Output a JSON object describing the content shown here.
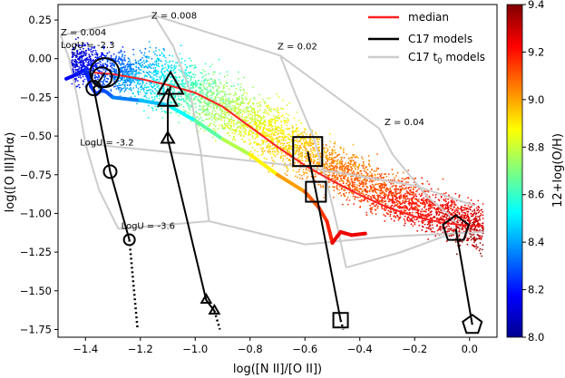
{
  "chart_data": {
    "type": "scatter",
    "xlabel": "log([N II]/[O II])",
    "ylabel": "log([O III]/Hα)",
    "xlim": [
      -1.5,
      0.1
    ],
    "ylim": [
      -1.8,
      0.35
    ],
    "xticks": [
      -1.4,
      -1.2,
      -1.0,
      -0.8,
      -0.6,
      -0.4,
      -0.2,
      0.0
    ],
    "xtick_labels": [
      "−1.4",
      "−1.2",
      "−1.0",
      "−0.8",
      "−0.6",
      "−0.4",
      "−0.2",
      "0.0"
    ],
    "yticks": [
      0.25,
      0.0,
      -0.25,
      -0.5,
      -0.75,
      -1.0,
      -1.25,
      -1.5,
      -1.75
    ],
    "ytick_labels": [
      "0.25",
      "0.00",
      "−0.25",
      "−0.50",
      "−0.75",
      "−1.00",
      "−1.25",
      "−1.50",
      "−1.75"
    ],
    "legend": {
      "position": "top-right",
      "entries": [
        {
          "label": "median",
          "color": "#ff2020"
        },
        {
          "label": "C17 models",
          "color": "#000000"
        },
        {
          "label": "C17 t",
          "sub": "0",
          "label_after": " models",
          "color": "#cccccc"
        }
      ]
    },
    "colorbar": {
      "label": "12+log(O/H)",
      "range": [
        8.0,
        9.4
      ],
      "ticks": [
        8.0,
        8.2,
        8.4,
        8.6,
        8.8,
        9.0,
        9.2,
        9.4
      ],
      "tick_labels": [
        "8.0",
        "8.2",
        "8.4",
        "8.6",
        "8.8",
        "9.0",
        "9.2",
        "9.4"
      ],
      "colormap": "jet"
    },
    "annotations": [
      {
        "text": "Z = 0.004",
        "x": -1.49,
        "y": 0.15
      },
      {
        "text": "LogU = -2.3",
        "x": -1.49,
        "y": 0.07
      },
      {
        "text": "Z = 0.008",
        "x": -1.16,
        "y": 0.26
      },
      {
        "text": "Z = 0.02",
        "x": -0.7,
        "y": 0.06
      },
      {
        "text": "Z = 0.04",
        "x": -0.31,
        "y": -0.43
      },
      {
        "text": "LogU = -3.2",
        "x": -1.42,
        "y": -0.56
      },
      {
        "text": "LogU = -3.6",
        "x": -1.27,
        "y": -1.1
      }
    ],
    "median_curve": {
      "name": "median",
      "color": "#ff2020",
      "x": [
        -1.37,
        -1.3,
        -1.2,
        -1.1,
        -1.0,
        -0.9,
        -0.8,
        -0.7,
        -0.6,
        -0.5,
        -0.4,
        -0.3,
        -0.2,
        -0.1,
        0.0,
        0.05
      ],
      "y": [
        -0.09,
        -0.1,
        -0.13,
        -0.17,
        -0.22,
        -0.31,
        -0.44,
        -0.57,
        -0.69,
        -0.79,
        -0.88,
        -0.96,
        -1.02,
        -1.06,
        -1.08,
        -1.08
      ]
    },
    "low_z_track": {
      "description": "coloured track at lower edge of the galaxy cloud",
      "x": [
        -1.47,
        -1.43,
        -1.4,
        -1.38,
        -1.36,
        -1.34,
        -1.32,
        -1.3,
        -1.2,
        -1.1,
        -1.0,
        -0.9,
        -0.8,
        -0.7,
        -0.6,
        -0.55,
        -0.52,
        -0.5,
        -0.47,
        -0.43,
        -0.38
      ],
      "y": [
        -0.13,
        -0.1,
        -0.07,
        -0.18,
        -0.23,
        -0.2,
        -0.22,
        -0.25,
        -0.27,
        -0.3,
        -0.4,
        -0.52,
        -0.62,
        -0.75,
        -0.86,
        -0.96,
        -1.05,
        -1.19,
        -1.12,
        -1.14,
        -1.13
      ]
    },
    "scatter_cloud": {
      "description": "dense cloud of individual galaxies coloured by 12+log(O/H)",
      "spine_x": [
        -1.45,
        -1.3,
        -1.1,
        -0.9,
        -0.7,
        -0.5,
        -0.3,
        -0.1,
        0.05
      ],
      "spine_y": [
        -0.02,
        -0.08,
        -0.15,
        -0.3,
        -0.5,
        -0.7,
        -0.88,
        -1.0,
        -1.1
      ],
      "oh_at_spine": [
        8.1,
        8.3,
        8.55,
        8.75,
        8.9,
        9.05,
        9.15,
        9.25,
        9.32
      ]
    },
    "c17_models": [
      {
        "marker": "circle",
        "line": "solid",
        "points": [
          {
            "x": -1.33,
            "y": -0.09,
            "size": 16
          },
          {
            "x": -1.34,
            "y": -0.12,
            "size": 11
          },
          {
            "x": -1.37,
            "y": -0.19,
            "size": 8
          },
          {
            "x": -1.31,
            "y": -0.73,
            "size": 7
          },
          {
            "x": -1.24,
            "y": -1.17,
            "size": 6
          }
        ],
        "dotted_x": [
          -1.24,
          -1.21
        ],
        "dotted_y": [
          -1.17,
          -1.75
        ]
      },
      {
        "marker": "triangle",
        "line": "solid",
        "points": [
          {
            "x": -1.09,
            "y": -0.18,
            "size": 16
          },
          {
            "x": -1.1,
            "y": -0.27,
            "size": 12
          },
          {
            "x": -1.1,
            "y": -0.52,
            "size": 8
          },
          {
            "x": -0.96,
            "y": -1.56,
            "size": 6
          },
          {
            "x": -0.93,
            "y": -1.63,
            "size": 6
          }
        ],
        "dotted_x": [
          -0.93,
          -0.91
        ],
        "dotted_y": [
          -1.63,
          -1.75
        ]
      },
      {
        "marker": "square",
        "line": "solid",
        "points": [
          {
            "x": -0.59,
            "y": -0.6,
            "size": 16
          },
          {
            "x": -0.56,
            "y": -0.86,
            "size": 11
          },
          {
            "x": -0.47,
            "y": -1.69,
            "size": 8
          }
        ],
        "dotted_x": [
          -0.47,
          -0.46
        ],
        "dotted_y": [
          -1.69,
          -1.75
        ]
      },
      {
        "marker": "pentagon",
        "line": "solid",
        "points": [
          {
            "x": -0.05,
            "y": -1.1,
            "size": 15
          },
          {
            "x": 0.01,
            "y": -1.72,
            "size": 11
          }
        ]
      }
    ],
    "c17_t0_models": {
      "color": "#cccccc",
      "polylines": [
        {
          "x": [
            -1.49,
            -1.46,
            -1.43,
            -1.4,
            -1.35,
            -1.28
          ],
          "y": [
            0.15,
            0.0,
            -0.25,
            -0.55,
            -0.85,
            -1.1
          ]
        },
        {
          "x": [
            -1.15,
            -1.08,
            -1.02,
            -0.98,
            -0.95
          ],
          "y": [
            0.28,
            0.08,
            -0.2,
            -0.6,
            -1.05
          ]
        },
        {
          "x": [
            -0.69,
            -0.63,
            -0.57,
            -0.52,
            -0.48,
            -0.45
          ],
          "y": [
            0.02,
            -0.25,
            -0.5,
            -0.8,
            -1.1,
            -1.35
          ]
        },
        {
          "x": [
            -0.33,
            -0.28,
            -0.22,
            -0.15,
            -0.08,
            -0.03
          ],
          "y": [
            -0.45,
            -0.62,
            -0.75,
            -0.9,
            -1.0,
            -1.1
          ]
        },
        {
          "x": [
            -1.49,
            -1.15,
            -0.69,
            -0.33
          ],
          "y": [
            0.15,
            0.28,
            0.02,
            -0.45
          ]
        },
        {
          "x": [
            -1.4,
            -1.0,
            -0.6,
            -0.2,
            0.02
          ],
          "y": [
            -0.55,
            -0.62,
            -0.7,
            -0.82,
            -0.95
          ]
        },
        {
          "x": [
            -1.28,
            -0.95,
            -0.6,
            -0.3,
            0.05
          ],
          "y": [
            -1.1,
            -1.05,
            -1.2,
            -1.15,
            -1.12
          ]
        },
        {
          "x": [
            -0.45,
            -0.25,
            -0.05
          ],
          "y": [
            -1.35,
            -1.25,
            -1.12
          ]
        }
      ]
    }
  }
}
